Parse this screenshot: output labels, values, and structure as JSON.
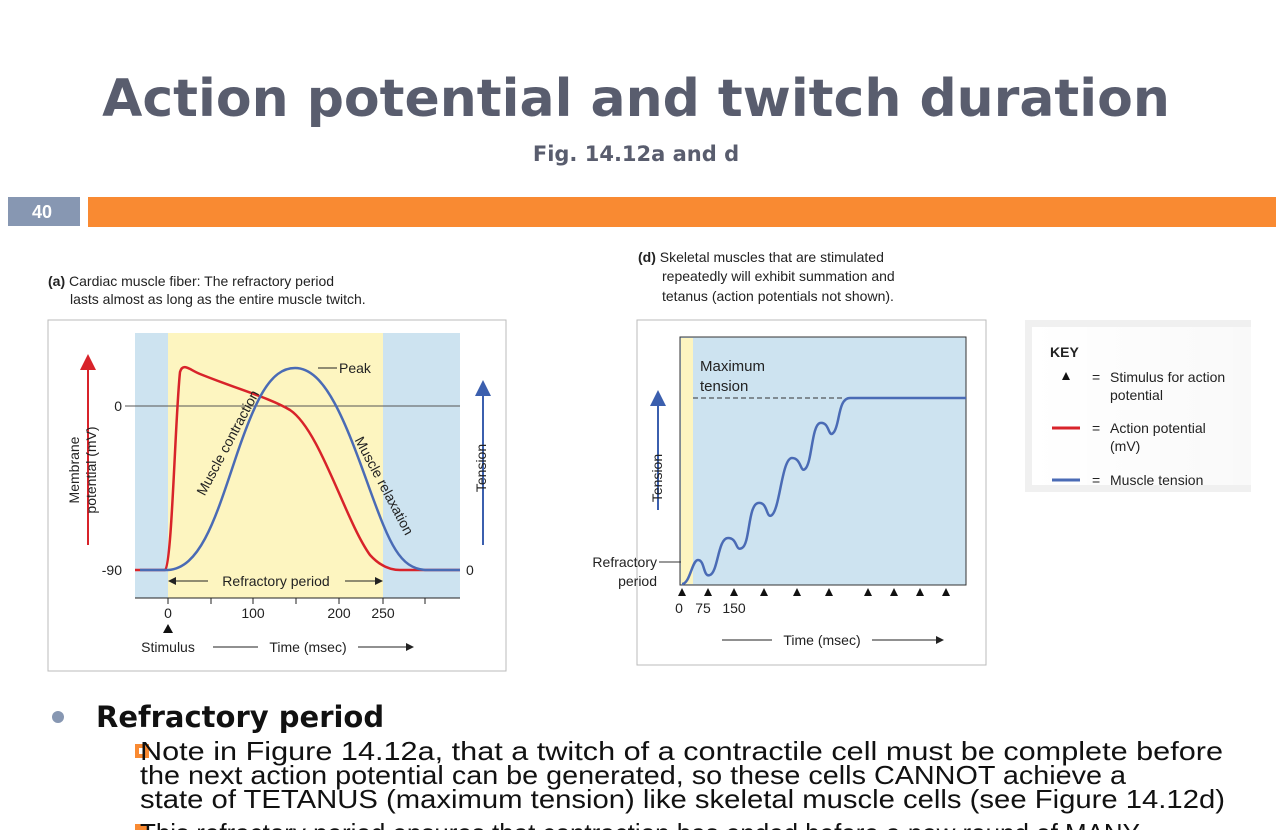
{
  "slide": {
    "title": "Action potential and twitch duration",
    "subtitle": "Fig. 14.12a and d",
    "number": "40"
  },
  "figure_a": {
    "caption_label": "(a)",
    "caption_lines": [
      "Cardiac muscle fiber: The refractory period",
      "lasts almost as long as the entire muscle twitch."
    ],
    "y_left_label_lines": [
      "Membrane",
      "potential (mV)"
    ],
    "y_left_ticks": [
      "0",
      "-90"
    ],
    "y_right_label": "Tension",
    "y_right_tick": "0",
    "x_ticks": [
      "0",
      "100",
      "200",
      "250"
    ],
    "peak": "Peak",
    "contraction": "Muscle contraction",
    "relaxation": "Muscle relaxation",
    "refractory": "Refractory period",
    "stimulus": "Stimulus",
    "x_label": "Time (msec)"
  },
  "figure_d": {
    "caption_label": "(d)",
    "caption_lines": [
      "Skeletal muscles that are stimulated",
      "repeatedly will exhibit summation and",
      "tetanus (action potentials not shown)."
    ],
    "max_tension_lines": [
      "Maximum",
      "tension"
    ],
    "y_label": "Tension",
    "refractory_lines": [
      "Refractory",
      "period"
    ],
    "x_ticks": [
      "0",
      "75",
      "150"
    ],
    "x_label": "Time (msec)"
  },
  "key": {
    "title": "KEY",
    "items": [
      {
        "symbol": "=",
        "lines": [
          "Stimulus for action",
          "potential"
        ]
      },
      {
        "symbol": "=",
        "lines": [
          "Action potential",
          "(mV)"
        ]
      },
      {
        "symbol": "=",
        "lines": [
          "Muscle tension"
        ]
      }
    ]
  },
  "bullets": {
    "heading": "Refractory period",
    "items": [
      {
        "lines": [
          "Note in Figure 14.12a, that a twitch of a contractile cell must be complete before",
          "the next action potential can be generated, so these cells CANNOT achieve a",
          "state of TETANUS (maximum tension) like skeletal muscle cells (see Figure 14.12d)"
        ]
      },
      {
        "lines": [
          "This refractory period ensures that contraction has ended before a new round of MANY"
        ]
      }
    ]
  }
}
